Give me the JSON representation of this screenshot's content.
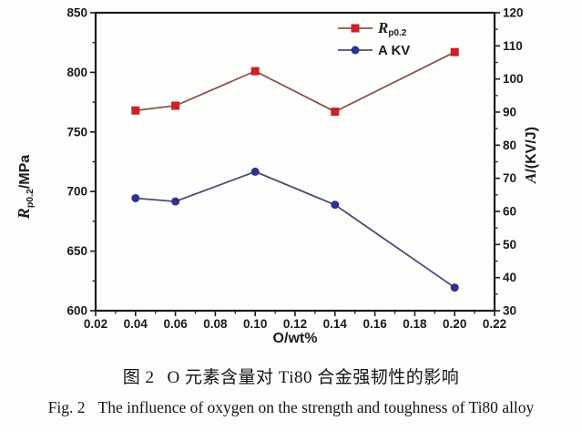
{
  "figure": {
    "caption_zh": {
      "label": "图 2",
      "text": "O 元素含量对 Ti80 合金强韧性的影响"
    },
    "caption_en": {
      "label": "Fig. 2",
      "text": "The influence of oxygen on the strength and toughness of Ti80 alloy"
    }
  },
  "chart_data": {
    "type": "line",
    "x": [
      0.04,
      0.06,
      0.1,
      0.14,
      0.2
    ],
    "series": [
      {
        "name": "Rp0.2",
        "legend": {
          "base": "R",
          "sub": "p0.2",
          "base_italic": true
        },
        "axis": "left",
        "values": [
          768,
          772,
          801,
          767,
          817
        ],
        "marker": "square",
        "marker_color": "#cb2127",
        "line_color": "#8a534c"
      },
      {
        "name": "A KV",
        "legend": {
          "base": "A KV",
          "sub": "",
          "base_italic": false
        },
        "axis": "right",
        "values": [
          64,
          63,
          72,
          62,
          37
        ],
        "marker": "circle",
        "marker_color": "#2e3192",
        "line_color": "#4b4c72"
      }
    ],
    "xlabel": "O/wt%",
    "ylabel_left": {
      "base": "R",
      "sub": "p0.2",
      "suffix": "/MPa"
    },
    "ylabel_right": {
      "base": "A",
      "suffix": "/(KV/J)"
    },
    "xlim": [
      0.02,
      0.22
    ],
    "xticks": [
      0.02,
      0.04,
      0.06,
      0.08,
      0.1,
      0.12,
      0.14,
      0.16,
      0.18,
      0.2,
      0.22
    ],
    "x_minor_step": 0.01,
    "ylim_left": [
      600,
      850
    ],
    "yticks_left": [
      600,
      650,
      700,
      750,
      800,
      850
    ],
    "y_left_minor_step": 25,
    "ylim_right": [
      30,
      120
    ],
    "yticks_right": [
      30,
      40,
      50,
      60,
      70,
      80,
      90,
      100,
      110,
      120
    ],
    "y_right_minor_step": 5,
    "grid": false,
    "legend_position": "top-right-inside",
    "frame_color": "#1c1c1c"
  }
}
